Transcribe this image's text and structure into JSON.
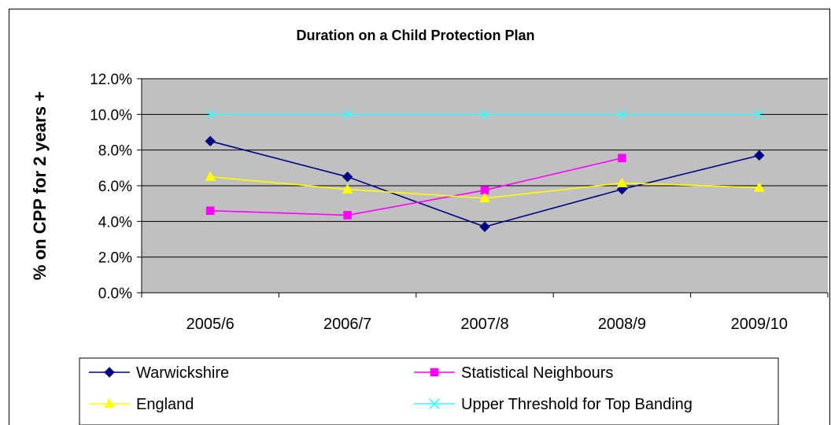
{
  "chart_data": {
    "type": "line",
    "title": "Duration on a Child Protection Plan",
    "xlabel": "",
    "ylabel": "% on CPP for 2 years +",
    "categories": [
      "2005/6",
      "2006/7",
      "2007/8",
      "2008/9",
      "2009/10"
    ],
    "ylim": [
      0,
      12
    ],
    "yticks": [
      0,
      2,
      4,
      6,
      8,
      10,
      12
    ],
    "ytick_labels": [
      "0.0%",
      "2.0%",
      "4.0%",
      "6.0%",
      "8.0%",
      "10.0%",
      "12.0%"
    ],
    "grid": true,
    "legend_position": "bottom",
    "plot_background": "#c0c0c0",
    "series": [
      {
        "name": "Warwickshire",
        "values": [
          8.5,
          6.5,
          3.7,
          5.8,
          7.7
        ],
        "color": "#000080",
        "marker": "diamond"
      },
      {
        "name": "Statistical Neighbours",
        "values": [
          4.6,
          4.35,
          5.75,
          7.55,
          null
        ],
        "color": "#ff00ff",
        "marker": "square"
      },
      {
        "name": "England",
        "values": [
          6.5,
          5.8,
          5.3,
          6.15,
          5.9
        ],
        "color": "#ffff00",
        "marker": "triangle"
      },
      {
        "name": "Upper Threshold for Top Banding",
        "values": [
          10.0,
          10.0,
          10.0,
          10.0,
          10.0
        ],
        "color": "#33ffff",
        "marker": "x"
      }
    ]
  }
}
